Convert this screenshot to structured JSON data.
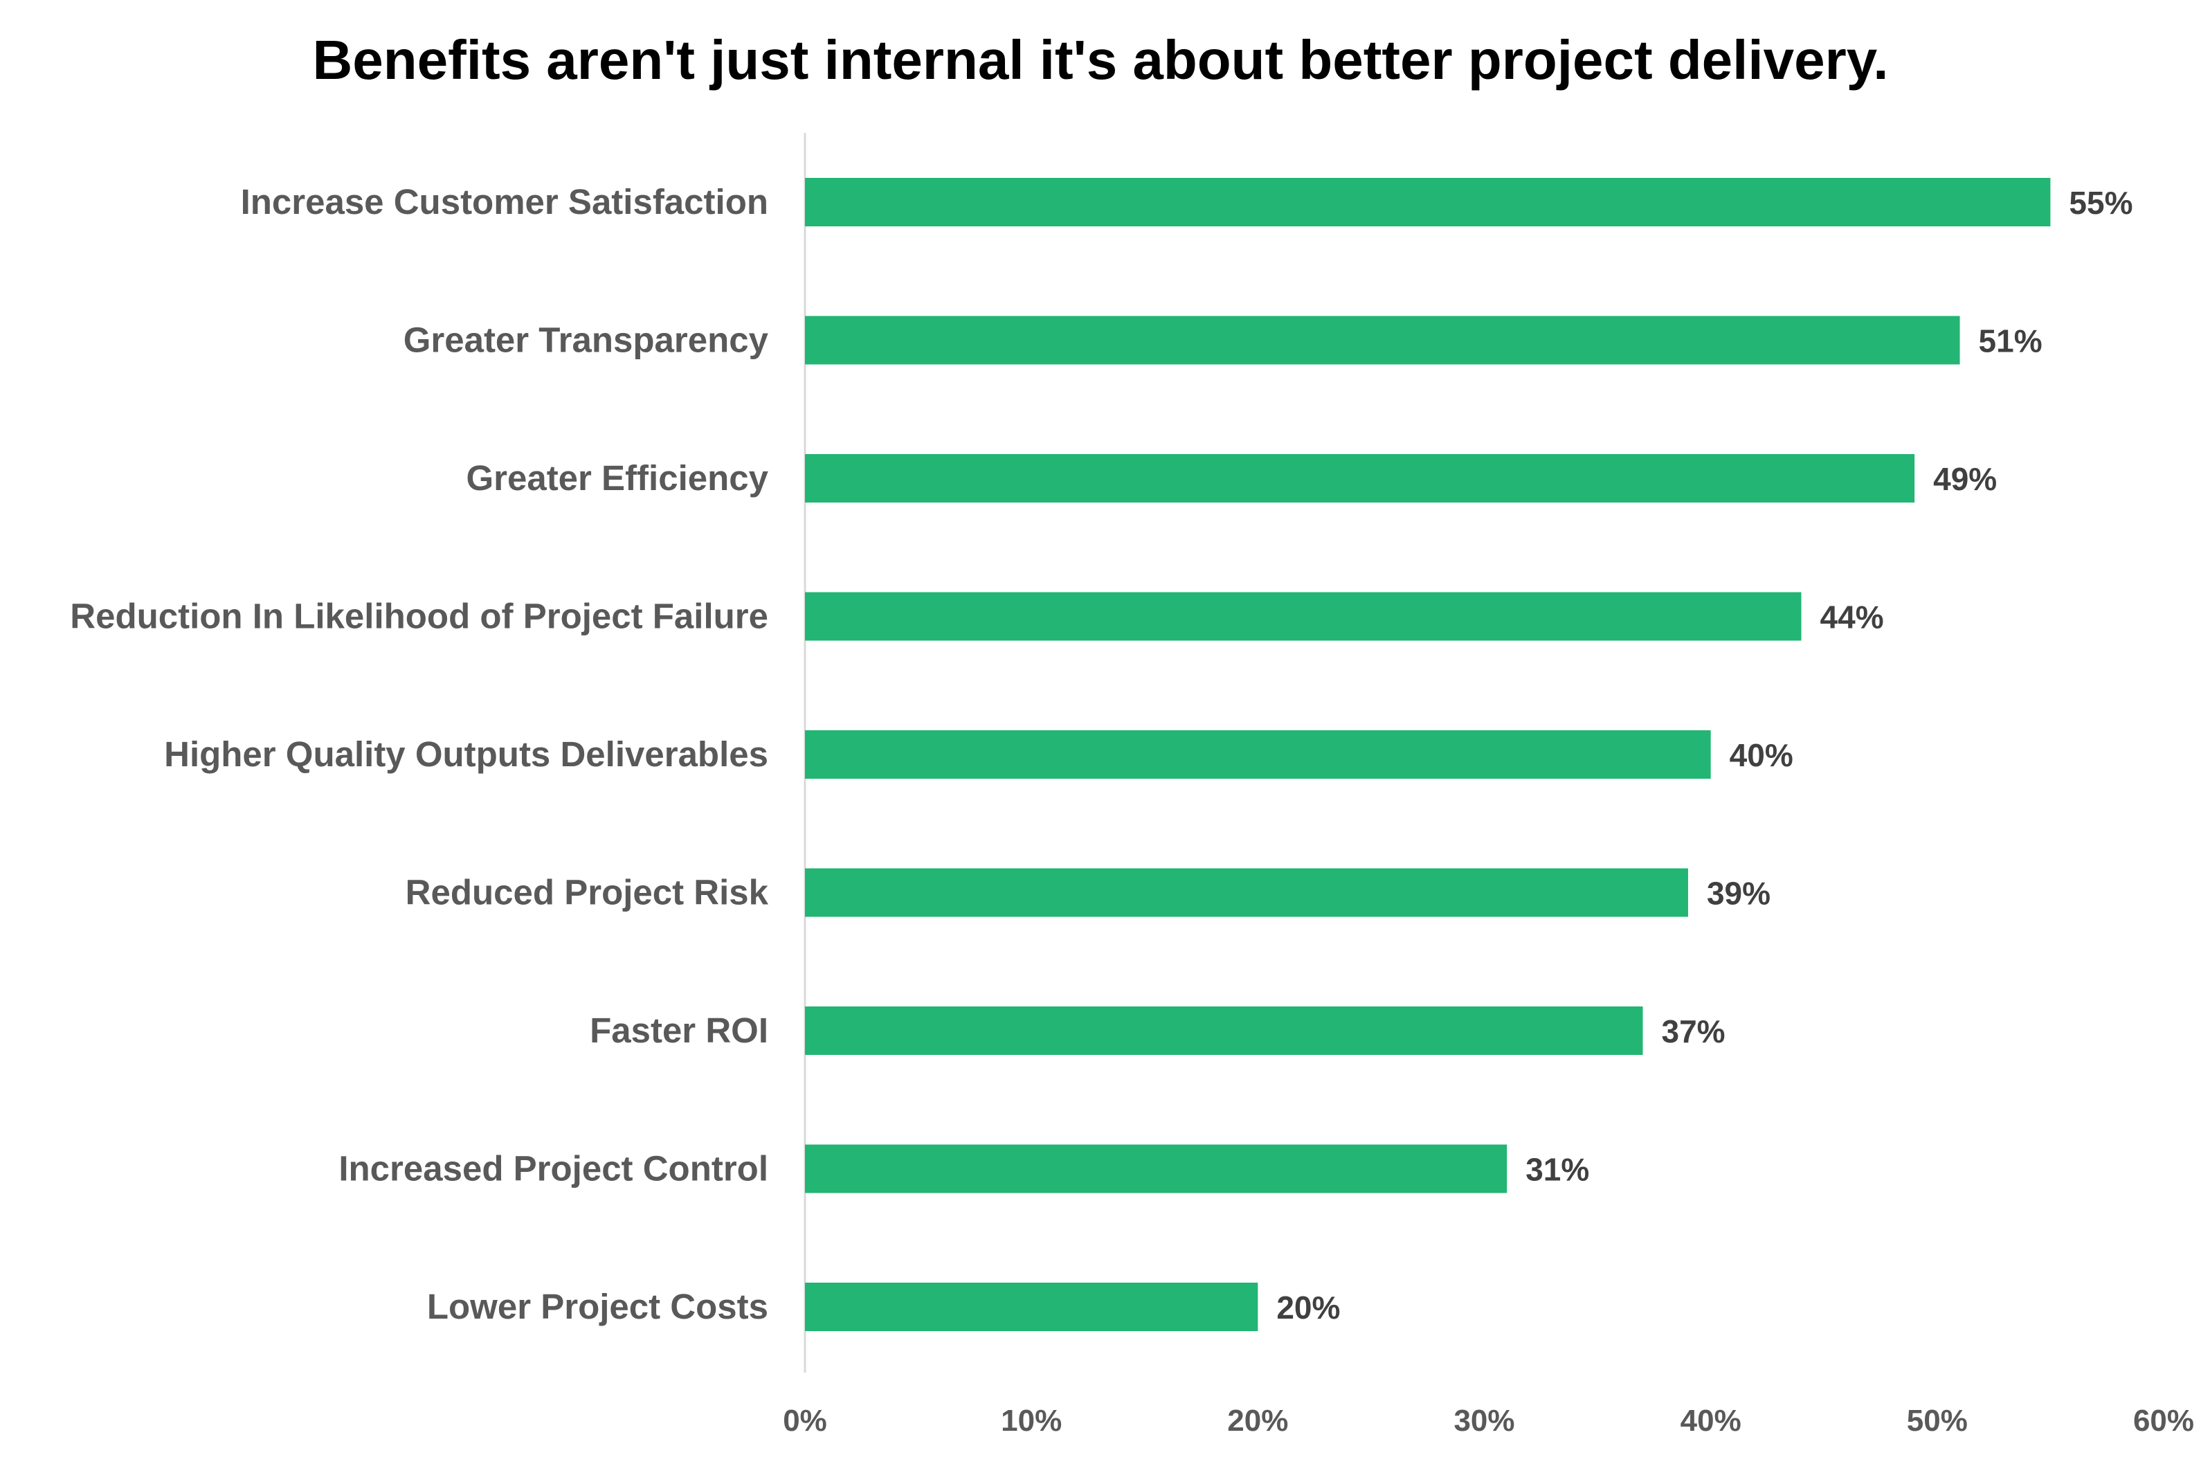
{
  "chart_data": {
    "type": "bar",
    "orientation": "horizontal",
    "title": "Benefits aren't just internal it's about better project delivery.",
    "categories": [
      "Increase Customer Satisfaction",
      "Greater Transparency",
      "Greater Efficiency",
      "Reduction In Likelihood of Project Failure",
      "Higher Quality Outputs Deliverables",
      "Reduced Project Risk",
      "Faster ROI",
      "Increased Project Control",
      "Lower Project Costs"
    ],
    "values": [
      55,
      51,
      49,
      44,
      40,
      39,
      37,
      31,
      20
    ],
    "data_labels": [
      "55%",
      "51%",
      "49%",
      "44%",
      "40%",
      "39%",
      "37%",
      "31%",
      "20%"
    ],
    "xlim": [
      0,
      60
    ],
    "x_ticks": [
      0,
      10,
      20,
      30,
      40,
      50,
      60
    ],
    "x_tick_labels": [
      "0%",
      "10%",
      "20%",
      "30%",
      "40%",
      "50%",
      "60%"
    ],
    "grid": false,
    "legend": "none",
    "colors": {
      "bar": "#22b573",
      "title": "#595959",
      "category_label": "#595959",
      "tick_label": "#595959",
      "data_label": "#404040",
      "axis_line": "#d9d9d9"
    }
  }
}
